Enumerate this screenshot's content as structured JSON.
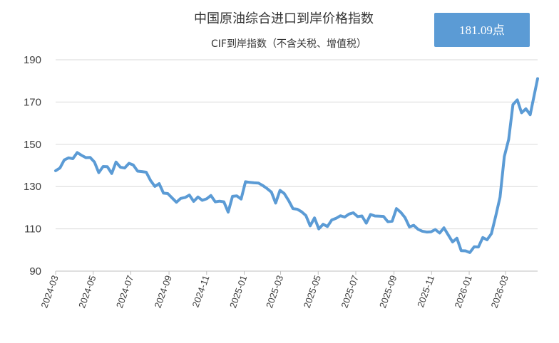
{
  "chart_data": {
    "type": "line",
    "title": "中国原油综合进口到岸价格指数",
    "subtitle": "CIF到岸指数（不含关税、增值税）",
    "badge": "181.09点",
    "ylim": [
      90,
      190
    ],
    "yticks": [
      90,
      110,
      130,
      150,
      170,
      190
    ],
    "xlim": [
      "2024-03-01",
      "2026-04-22"
    ],
    "xticks": [
      "2024-03",
      "2024-05",
      "2024-07",
      "2024-09",
      "2024-11",
      "2025-01",
      "2025-03",
      "2025-05",
      "2025-07",
      "2025-09",
      "2025-11",
      "2026-01",
      "2026-03"
    ],
    "grid": true,
    "legend": "none",
    "color": "#5b9bd5",
    "badge_color": "#5b9bd5",
    "series": [
      {
        "values": [
          [
            "2024-03-01",
            137.5
          ],
          [
            "2024-03-08",
            138.8
          ],
          [
            "2024-03-15",
            142.6
          ],
          [
            "2024-03-22",
            143.6
          ],
          [
            "2024-03-29",
            143.2
          ],
          [
            "2024-04-05",
            146.1
          ],
          [
            "2024-04-12",
            144.8
          ],
          [
            "2024-04-19",
            143.7
          ],
          [
            "2024-04-26",
            143.8
          ],
          [
            "2024-05-03",
            141.6
          ],
          [
            "2024-05-10",
            136.6
          ],
          [
            "2024-05-17",
            139.5
          ],
          [
            "2024-05-24",
            139.4
          ],
          [
            "2024-05-31",
            136.2
          ],
          [
            "2024-06-07",
            141.6
          ],
          [
            "2024-06-14",
            139.2
          ],
          [
            "2024-06-21",
            138.8
          ],
          [
            "2024-06-28",
            141.0
          ],
          [
            "2024-07-05",
            140.2
          ],
          [
            "2024-07-12",
            137.3
          ],
          [
            "2024-07-19",
            137.1
          ],
          [
            "2024-07-26",
            136.8
          ],
          [
            "2024-08-02",
            132.9
          ],
          [
            "2024-08-09",
            130.1
          ],
          [
            "2024-08-16",
            131.4
          ],
          [
            "2024-08-23",
            126.9
          ],
          [
            "2024-08-30",
            126.7
          ],
          [
            "2024-09-06",
            124.6
          ],
          [
            "2024-09-13",
            122.6
          ],
          [
            "2024-09-20",
            124.4
          ],
          [
            "2024-09-27",
            124.8
          ],
          [
            "2024-10-04",
            126.0
          ],
          [
            "2024-10-11",
            123.0
          ],
          [
            "2024-10-18",
            125.1
          ],
          [
            "2024-10-25",
            123.5
          ],
          [
            "2024-11-01",
            124.2
          ],
          [
            "2024-11-08",
            125.8
          ],
          [
            "2024-11-15",
            122.8
          ],
          [
            "2024-11-22",
            123.1
          ],
          [
            "2024-11-29",
            122.8
          ],
          [
            "2024-12-06",
            117.9
          ],
          [
            "2024-12-13",
            125.4
          ],
          [
            "2024-12-20",
            125.6
          ],
          [
            "2024-12-27",
            124.1
          ],
          [
            "2025-01-03",
            132.3
          ],
          [
            "2025-01-10",
            132.0
          ],
          [
            "2025-01-17",
            131.8
          ],
          [
            "2025-01-24",
            131.7
          ],
          [
            "2025-01-31",
            130.5
          ],
          [
            "2025-02-07",
            129.1
          ],
          [
            "2025-02-14",
            127.4
          ],
          [
            "2025-02-21",
            122.2
          ],
          [
            "2025-02-28",
            128.2
          ],
          [
            "2025-03-07",
            126.7
          ],
          [
            "2025-03-14",
            123.4
          ],
          [
            "2025-03-21",
            119.6
          ],
          [
            "2025-03-28",
            119.3
          ],
          [
            "2025-04-04",
            118.1
          ],
          [
            "2025-04-11",
            116.3
          ],
          [
            "2025-04-18",
            111.4
          ],
          [
            "2025-04-25",
            115.2
          ],
          [
            "2025-05-02",
            110.0
          ],
          [
            "2025-05-09",
            112.2
          ],
          [
            "2025-05-16",
            111.1
          ],
          [
            "2025-05-23",
            114.2
          ],
          [
            "2025-05-30",
            115.0
          ],
          [
            "2025-06-06",
            116.2
          ],
          [
            "2025-06-13",
            115.6
          ],
          [
            "2025-06-20",
            117.0
          ],
          [
            "2025-06-27",
            117.6
          ],
          [
            "2025-07-04",
            115.8
          ],
          [
            "2025-07-11",
            116.1
          ],
          [
            "2025-07-18",
            112.7
          ],
          [
            "2025-07-25",
            116.8
          ],
          [
            "2025-08-01",
            116.1
          ],
          [
            "2025-08-08",
            116.0
          ],
          [
            "2025-08-15",
            115.9
          ],
          [
            "2025-08-22",
            113.4
          ],
          [
            "2025-08-29",
            113.6
          ],
          [
            "2025-09-05",
            119.6
          ],
          [
            "2025-09-12",
            117.8
          ],
          [
            "2025-09-19",
            115.3
          ],
          [
            "2025-09-26",
            110.9
          ],
          [
            "2025-10-03",
            111.7
          ],
          [
            "2025-10-10",
            109.8
          ],
          [
            "2025-10-17",
            108.9
          ],
          [
            "2025-10-24",
            108.5
          ],
          [
            "2025-10-31",
            108.6
          ],
          [
            "2025-11-07",
            109.7
          ],
          [
            "2025-11-14",
            108.0
          ],
          [
            "2025-11-21",
            110.5
          ],
          [
            "2025-11-28",
            107.1
          ],
          [
            "2025-12-05",
            103.8
          ],
          [
            "2025-12-12",
            105.6
          ],
          [
            "2025-12-19",
            99.7
          ],
          [
            "2025-12-26",
            99.6
          ],
          [
            "2026-01-02",
            98.8
          ],
          [
            "2026-01-09",
            101.5
          ],
          [
            "2026-01-16",
            101.4
          ],
          [
            "2026-01-23",
            105.9
          ],
          [
            "2026-01-30",
            104.8
          ],
          [
            "2026-02-06",
            107.7
          ],
          [
            "2026-02-13",
            116.0
          ],
          [
            "2026-02-20",
            125.0
          ],
          [
            "2026-02-27",
            144.2
          ],
          [
            "2026-03-06",
            152.3
          ],
          [
            "2026-03-13",
            168.8
          ],
          [
            "2026-03-20",
            171.0
          ],
          [
            "2026-03-27",
            164.9
          ],
          [
            "2026-04-03",
            166.8
          ],
          [
            "2026-04-10",
            164.0
          ],
          [
            "2026-04-22",
            181.09
          ]
        ]
      }
    ]
  }
}
